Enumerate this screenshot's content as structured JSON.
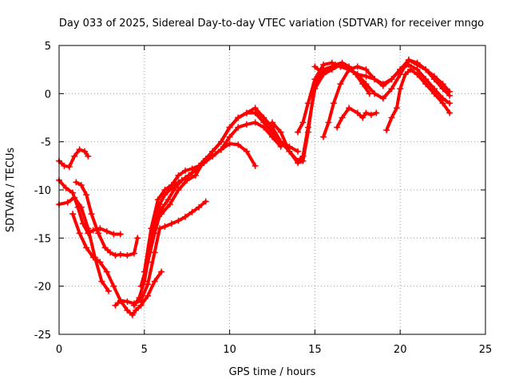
{
  "chart_data": {
    "type": "line",
    "title": "Day 033 of 2025, Sidereal Day-to-day VTEC variation (SDTVAR) for receiver mngo",
    "xlabel": "GPS time / hours",
    "ylabel": "SDTVAR / TECUs",
    "xlim": [
      0,
      25
    ],
    "ylim": [
      -25,
      5
    ],
    "xticks": [
      0,
      5,
      10,
      15,
      20,
      25
    ],
    "yticks": [
      -25,
      -20,
      -15,
      -10,
      -5,
      0,
      5
    ],
    "grid": true,
    "legend": "none",
    "marker": "plus",
    "color": "#ff0000",
    "series": [
      {
        "x": [
          0.0,
          0.3,
          0.6,
          0.9,
          1.2,
          1.5,
          1.7
        ],
        "y": [
          -7.0,
          -7.5,
          -7.6,
          -6.5,
          -5.8,
          -6.0,
          -6.5
        ]
      },
      {
        "x": [
          0.0,
          0.5,
          0.9,
          1.3,
          1.7,
          2.1,
          2.5,
          2.9
        ],
        "y": [
          -11.5,
          -11.3,
          -10.8,
          -11.8,
          -14.0,
          -17.0,
          -19.5,
          -20.5
        ]
      },
      {
        "x": [
          0.0,
          0.4,
          0.8,
          1.1,
          1.4,
          1.7,
          2.0,
          2.4,
          2.8,
          3.2,
          3.6
        ],
        "y": [
          -9.0,
          -9.8,
          -10.3,
          -11.8,
          -13.5,
          -14.5,
          -14.2,
          -14.0,
          -14.3,
          -14.6,
          -14.6
        ]
      },
      {
        "x": [
          1.0,
          1.3,
          1.6,
          1.9,
          2.3,
          2.7,
          3.0,
          3.3,
          3.6,
          4.0,
          4.4,
          4.6
        ],
        "y": [
          -9.2,
          -9.5,
          -10.5,
          -12.5,
          -14.5,
          -16.0,
          -16.5,
          -16.8,
          -16.7,
          -16.8,
          -16.6,
          -15.0
        ]
      },
      {
        "x": [
          0.8,
          1.2,
          1.6,
          2.0,
          2.4,
          2.8,
          3.2,
          3.6,
          4.0,
          4.3,
          4.5,
          4.8,
          5.2,
          5.6,
          6.0
        ],
        "y": [
          -12.5,
          -14.5,
          -16.0,
          -17.0,
          -17.5,
          -18.5,
          -20.0,
          -21.5,
          -22.5,
          -23.0,
          -22.5,
          -22.0,
          -21.0,
          -19.5,
          -18.5
        ]
      },
      {
        "x": [
          3.3,
          3.6,
          4.0,
          4.4,
          4.8,
          5.2,
          5.6,
          5.9,
          6.2,
          6.6,
          7.0,
          7.4,
          7.8,
          8.2,
          8.6
        ],
        "y": [
          -22.0,
          -21.5,
          -21.6,
          -21.8,
          -21.5,
          -19.8,
          -16.5,
          -14.0,
          -13.8,
          -13.5,
          -13.2,
          -12.8,
          -12.3,
          -11.8,
          -11.2
        ]
      },
      {
        "x": [
          4.4,
          4.7,
          5.0,
          5.3,
          5.6,
          5.9,
          6.2,
          6.6,
          7.0,
          7.4,
          7.8,
          8.2,
          8.6,
          9.0,
          9.5,
          10.0,
          10.5,
          11.0,
          11.5
        ],
        "y": [
          -22.0,
          -21.2,
          -19.5,
          -16.5,
          -13.8,
          -11.5,
          -10.5,
          -9.8,
          -9.2,
          -8.8,
          -8.2,
          -7.5,
          -6.8,
          -6.5,
          -5.8,
          -5.2,
          -5.3,
          -6.0,
          -7.5
        ]
      },
      {
        "x": [
          4.8,
          5.2,
          5.6,
          6.0,
          6.4,
          6.8,
          7.2,
          7.6,
          8.0,
          8.5,
          9.0,
          9.5,
          10.0,
          10.5,
          11.0,
          11.5,
          12.0,
          12.5,
          13.0
        ],
        "y": [
          -20.0,
          -17.5,
          -14.5,
          -12.0,
          -11.0,
          -9.8,
          -9.0,
          -8.5,
          -8.0,
          -7.2,
          -6.5,
          -5.8,
          -4.5,
          -3.5,
          -3.2,
          -3.0,
          -3.5,
          -4.5,
          -5.5
        ]
      },
      {
        "x": [
          5.0,
          5.4,
          5.8,
          6.2,
          6.6,
          7.0,
          7.4,
          7.8,
          8.2,
          8.6,
          9.0,
          9.5,
          10.0,
          10.5,
          11.0,
          11.5,
          12.0,
          12.5,
          13.0,
          13.5,
          14.0
        ],
        "y": [
          -18.5,
          -14.0,
          -11.0,
          -10.0,
          -9.5,
          -8.5,
          -8.0,
          -7.8,
          -7.5,
          -6.8,
          -6.0,
          -5.0,
          -3.5,
          -2.5,
          -2.0,
          -2.0,
          -3.0,
          -4.0,
          -5.0,
          -5.5,
          -6.0
        ]
      },
      {
        "x": [
          6.0,
          6.5,
          7.0,
          7.5,
          8.0,
          8.5,
          9.0,
          9.5,
          10.0,
          10.5,
          11.0,
          11.5,
          12.0,
          12.5,
          13.0,
          13.5,
          14.0,
          14.3,
          14.6,
          15.0,
          15.5,
          16.0,
          16.5,
          17.0
        ],
        "y": [
          -12.5,
          -11.5,
          -10.0,
          -9.0,
          -8.5,
          -7.0,
          -6.0,
          -5.0,
          -3.5,
          -2.5,
          -2.0,
          -1.5,
          -2.5,
          -3.5,
          -5.0,
          -6.0,
          -7.0,
          -6.5,
          -3.5,
          0.5,
          2.0,
          2.5,
          3.0,
          2.5
        ]
      },
      {
        "x": [
          12.5,
          13.0,
          13.5,
          14.0,
          14.3,
          14.6,
          15.0,
          15.5,
          16.0,
          16.5,
          17.0,
          17.5,
          18.0,
          18.5,
          19.0,
          19.5,
          20.0,
          20.5,
          21.0,
          21.5,
          22.0,
          22.5,
          22.9
        ],
        "y": [
          -3.0,
          -4.0,
          -6.0,
          -7.2,
          -7.0,
          -4.0,
          1.0,
          2.5,
          2.8,
          3.0,
          2.5,
          2.0,
          1.8,
          1.5,
          1.0,
          1.5,
          2.5,
          3.5,
          3.0,
          2.5,
          1.8,
          1.0,
          0.2
        ]
      },
      {
        "x": [
          14.0,
          14.3,
          14.6,
          15.0,
          15.5,
          16.0,
          16.5,
          17.0,
          17.5,
          18.0,
          18.5,
          19.0,
          19.5,
          20.0,
          20.5,
          21.0,
          21.5,
          22.0,
          22.5,
          22.9
        ],
        "y": [
          -4.0,
          -3.0,
          -1.0,
          1.5,
          3.0,
          3.2,
          2.8,
          2.5,
          2.0,
          1.0,
          0.0,
          -0.5,
          0.5,
          2.0,
          3.5,
          3.2,
          2.5,
          1.5,
          0.5,
          -0.2
        ]
      },
      {
        "x": [
          15.5,
          15.8,
          16.1,
          16.5,
          17.0,
          17.5,
          18.0,
          18.5,
          19.0,
          19.5,
          20.0,
          20.5,
          21.0,
          21.5,
          22.0,
          22.5,
          22.9
        ],
        "y": [
          -4.5,
          -3.0,
          -1.0,
          1.0,
          2.5,
          2.8,
          2.5,
          1.5,
          0.8,
          1.5,
          2.5,
          3.0,
          2.5,
          1.5,
          0.5,
          -0.5,
          -1.0
        ]
      },
      {
        "x": [
          16.3,
          16.6,
          17.0,
          17.5,
          17.8,
          18.0,
          18.3,
          18.6
        ],
        "y": [
          -3.5,
          -2.5,
          -1.5,
          -2.0,
          -2.5,
          -2.0,
          -2.2,
          -2.0
        ]
      },
      {
        "x": [
          19.2,
          19.5,
          19.8,
          20.0,
          20.3,
          20.6,
          21.0,
          21.5,
          22.0,
          22.5,
          22.9
        ],
        "y": [
          -3.8,
          -2.5,
          -1.5,
          0.5,
          2.0,
          2.5,
          2.0,
          1.0,
          0.0,
          -1.0,
          -2.0
        ]
      },
      {
        "x": [
          15.0,
          15.4,
          15.8,
          16.2,
          16.6,
          17.0,
          17.4,
          17.8,
          18.2
        ],
        "y": [
          2.8,
          2.2,
          2.5,
          3.0,
          3.2,
          2.8,
          2.0,
          1.0,
          0.0
        ]
      }
    ]
  }
}
